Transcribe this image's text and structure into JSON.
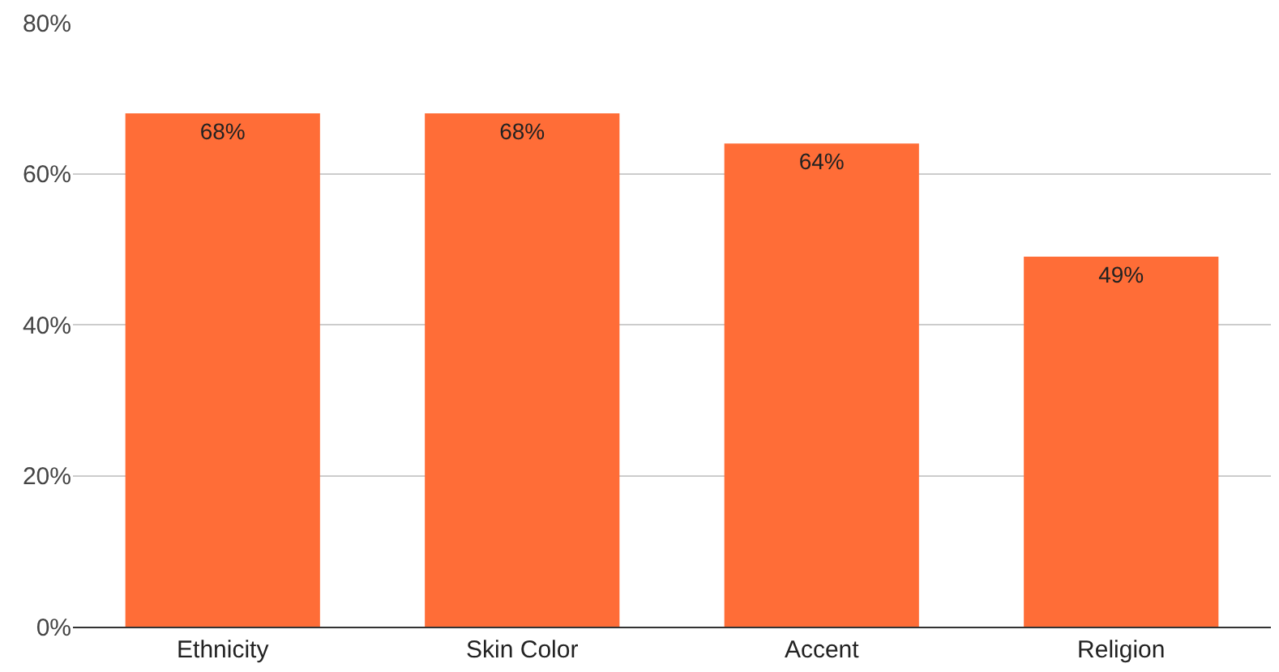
{
  "chart_data": {
    "type": "bar",
    "categories": [
      "Ethnicity",
      "Skin Color",
      "Accent",
      "Religion"
    ],
    "values": [
      68,
      68,
      64,
      49
    ],
    "value_labels": [
      "68%",
      "68%",
      "64%",
      "49%"
    ],
    "color": "#ff6d37",
    "ylim": [
      0,
      80
    ],
    "yticks": [
      {
        "value": 0,
        "label": "0%"
      },
      {
        "value": 20,
        "label": "20%"
      },
      {
        "value": 40,
        "label": "40%"
      },
      {
        "value": 60,
        "label": "60%"
      },
      {
        "value": 80,
        "label": "80%"
      }
    ],
    "grid": "y",
    "legend": false
  }
}
